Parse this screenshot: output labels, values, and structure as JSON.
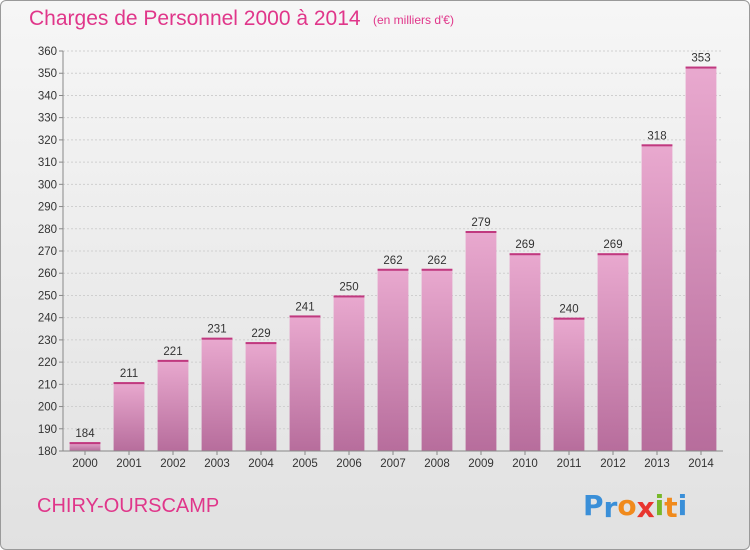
{
  "title": "Charges de Personnel 2000 à 2014",
  "subtitle": "(en milliers d'€)",
  "commune": "CHIRY-OURSCAMP",
  "logo": {
    "letters": [
      {
        "char": "P",
        "color": "#3a8fd8"
      },
      {
        "char": "r",
        "color": "#3a8fd8"
      },
      {
        "char": "o",
        "color": "#f08a1c"
      },
      {
        "char": "x",
        "color": "#e8352f"
      },
      {
        "char": "i",
        "color": "#77b82a"
      },
      {
        "char": "t",
        "color": "#f08a1c"
      },
      {
        "char": "i",
        "color": "#3a8fd8"
      }
    ]
  },
  "colors": {
    "accent": "#e0368a",
    "bar_light": "#e9a9cf",
    "bar_dark": "#b76d9c",
    "grid": "#cfcfcf"
  },
  "chart_data": {
    "type": "bar",
    "categories": [
      "2000",
      "2001",
      "2002",
      "2003",
      "2004",
      "2005",
      "2006",
      "2007",
      "2008",
      "2009",
      "2010",
      "2011",
      "2012",
      "2013",
      "2014"
    ],
    "values": [
      184,
      211,
      221,
      231,
      229,
      241,
      250,
      262,
      262,
      279,
      269,
      240,
      269,
      318,
      353
    ],
    "ylim": [
      180,
      360
    ],
    "yticks": [
      180,
      190,
      200,
      210,
      220,
      230,
      240,
      250,
      260,
      270,
      280,
      290,
      300,
      310,
      320,
      330,
      340,
      350,
      360
    ],
    "grid": true,
    "legend": "none"
  }
}
